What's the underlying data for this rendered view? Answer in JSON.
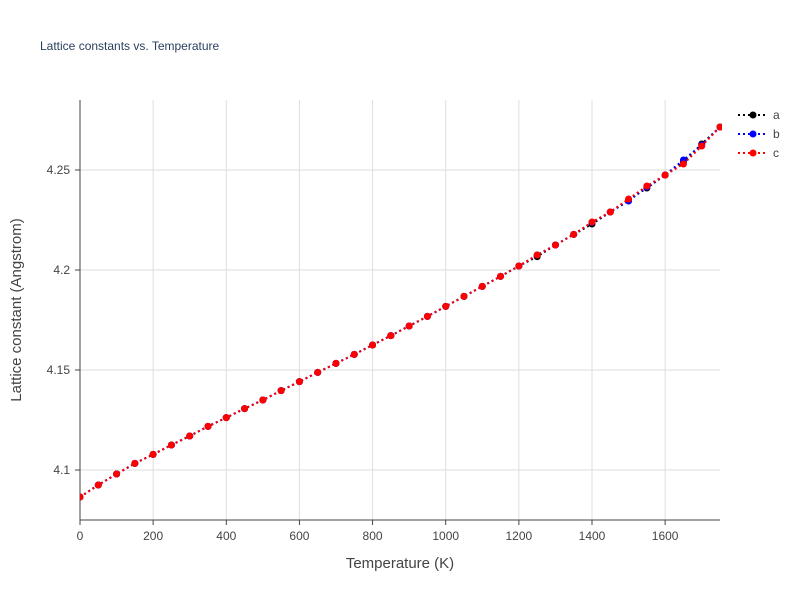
{
  "chart_data": {
    "type": "line",
    "title": "Lattice constants vs. Temperature",
    "xlabel": "Temperature (K)",
    "ylabel": "Lattice constant (Angstrom)",
    "xlim": [
      0,
      1750
    ],
    "ylim": [
      4.075,
      4.285
    ],
    "x_ticks": [
      0,
      200,
      400,
      600,
      800,
      1000,
      1200,
      1400,
      1600
    ],
    "x_tick_labels": [
      "0",
      "200",
      "400",
      "600",
      "800",
      "1000",
      "1200",
      "1400",
      "1600"
    ],
    "y_ticks": [
      4.1,
      4.15,
      4.2,
      4.25
    ],
    "y_tick_labels": [
      "4.1",
      "4.15",
      "4.2",
      "4.25"
    ],
    "grid": true,
    "legend_position": "top-right",
    "line_style": "dotted",
    "x": [
      0,
      50,
      100,
      150,
      200,
      250,
      300,
      350,
      400,
      450,
      500,
      550,
      600,
      650,
      700,
      750,
      800,
      850,
      900,
      950,
      1000,
      1050,
      1100,
      1150,
      1200,
      1250,
      1300,
      1350,
      1400,
      1450,
      1500,
      1550,
      1600,
      1650,
      1700,
      1750
    ],
    "series": [
      {
        "name": "a",
        "color": "#000000",
        "values": [
          4.0865,
          4.0925,
          4.098,
          4.1033,
          4.1078,
          4.1125,
          4.117,
          4.1218,
          4.1262,
          4.1307,
          4.135,
          4.1397,
          4.1442,
          4.1488,
          4.1533,
          4.1578,
          4.1625,
          4.1672,
          4.172,
          4.1768,
          4.1818,
          4.1868,
          4.1918,
          4.1968,
          4.202,
          4.2067,
          4.2125,
          4.2178,
          4.223,
          4.229,
          4.235,
          4.241,
          4.2475,
          4.254,
          4.263,
          4.2715
        ]
      },
      {
        "name": "b",
        "color": "#0000ff",
        "values": [
          4.0865,
          4.0925,
          4.098,
          4.1033,
          4.1078,
          4.1125,
          4.117,
          4.1218,
          4.1262,
          4.1307,
          4.135,
          4.1397,
          4.1442,
          4.1488,
          4.1533,
          4.1578,
          4.1625,
          4.1672,
          4.172,
          4.1768,
          4.1818,
          4.1868,
          4.1918,
          4.1968,
          4.202,
          4.2075,
          4.2125,
          4.2178,
          4.2238,
          4.229,
          4.2345,
          4.2415,
          4.2475,
          4.255,
          4.2625,
          4.2715
        ]
      },
      {
        "name": "c",
        "color": "#ff0000",
        "values": [
          4.0865,
          4.0925,
          4.098,
          4.1033,
          4.1078,
          4.1125,
          4.117,
          4.1218,
          4.1262,
          4.1307,
          4.135,
          4.1397,
          4.1442,
          4.1488,
          4.1533,
          4.1578,
          4.1625,
          4.1672,
          4.172,
          4.1768,
          4.1818,
          4.1868,
          4.1918,
          4.1968,
          4.202,
          4.2075,
          4.2125,
          4.2178,
          4.224,
          4.229,
          4.2355,
          4.242,
          4.2475,
          4.253,
          4.262,
          4.2715
        ]
      }
    ]
  }
}
